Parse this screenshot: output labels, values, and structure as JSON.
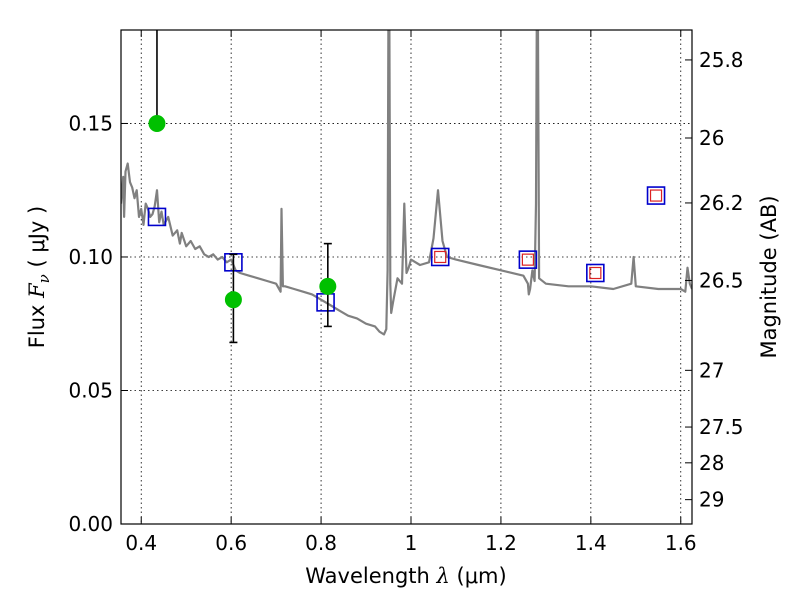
{
  "chart_data": {
    "type": "scatter",
    "title": "",
    "xlabel": "Wavelength  λ (μm)",
    "ylabel": "Flux  F_ν  ( μJy )",
    "ylabel_parts": {
      "prefix": "Flux  ",
      "symbol": "F",
      "sub": "ν",
      "suffix": "  ( μJy )"
    },
    "xlabel_parts": {
      "prefix": "Wavelength  ",
      "symbol": "λ",
      "suffix": " (μm)"
    },
    "y2label": "Magnitude (AB)",
    "xlim": [
      0.355,
      1.625
    ],
    "ylim": [
      0.0,
      0.185
    ],
    "grid": true,
    "x_ticks": [
      {
        "value": 0.4,
        "label": "0.4"
      },
      {
        "value": 0.6,
        "label": "0.6"
      },
      {
        "value": 0.8,
        "label": "0.8"
      },
      {
        "value": 1.0,
        "label": "1"
      },
      {
        "value": 1.2,
        "label": "1.2"
      },
      {
        "value": 1.4,
        "label": "1.4"
      },
      {
        "value": 1.6,
        "label": "1.6"
      }
    ],
    "y_ticks": [
      {
        "value": 0.0,
        "label": "0.00"
      },
      {
        "value": 0.05,
        "label": "0.05"
      },
      {
        "value": 0.1,
        "label": "0.10"
      },
      {
        "value": 0.15,
        "label": "0.15"
      }
    ],
    "y2_ticks": [
      {
        "mag": 25.8,
        "label": "25.8"
      },
      {
        "mag": 26.0,
        "label": "26"
      },
      {
        "mag": 26.2,
        "label": "26.2"
      },
      {
        "mag": 26.5,
        "label": "26.5"
      },
      {
        "mag": 27.0,
        "label": "27"
      },
      {
        "mag": 27.5,
        "label": "27.5"
      },
      {
        "mag": 28.0,
        "label": "28"
      },
      {
        "mag": 29.0,
        "label": "29"
      }
    ],
    "colors": {
      "model": "#808080",
      "observed": "#00c000",
      "model_band": "#0000cc",
      "inner_band": "#dd2222",
      "errorbar": "#000000"
    },
    "series": [
      {
        "style": "line",
        "x": [
          0.355,
          0.36,
          0.362,
          0.365,
          0.37,
          0.375,
          0.38,
          0.385,
          0.39,
          0.395,
          0.4,
          0.405,
          0.41,
          0.415,
          0.42,
          0.425,
          0.43,
          0.435,
          0.44,
          0.445,
          0.45,
          0.46,
          0.47,
          0.48,
          0.486,
          0.49,
          0.5,
          0.51,
          0.52,
          0.53,
          0.54,
          0.55,
          0.56,
          0.57,
          0.58,
          0.59,
          0.6,
          0.61,
          0.62,
          0.64,
          0.66,
          0.68,
          0.7,
          0.71,
          0.712,
          0.715,
          0.72,
          0.74,
          0.76,
          0.78,
          0.8,
          0.82,
          0.84,
          0.86,
          0.88,
          0.9,
          0.92,
          0.93,
          0.94,
          0.945,
          0.948,
          0.95,
          0.952,
          0.954,
          0.956,
          0.96,
          0.97,
          0.98,
          0.985,
          0.99,
          0.995,
          1.0,
          1.02,
          1.04,
          1.05,
          1.06,
          1.07,
          1.08,
          1.1,
          1.15,
          1.2,
          1.25,
          1.26,
          1.262,
          1.265,
          1.27,
          1.275,
          1.278,
          1.28,
          1.282,
          1.285,
          1.3,
          1.35,
          1.4,
          1.45,
          1.49,
          1.495,
          1.5,
          1.55,
          1.6,
          1.61,
          1.615,
          1.62,
          1.625
        ],
        "y": [
          0.12,
          0.13,
          0.115,
          0.132,
          0.135,
          0.128,
          0.126,
          0.122,
          0.125,
          0.115,
          0.118,
          0.112,
          0.12,
          0.118,
          0.115,
          0.116,
          0.119,
          0.125,
          0.113,
          0.117,
          0.112,
          0.115,
          0.108,
          0.11,
          0.105,
          0.109,
          0.104,
          0.106,
          0.103,
          0.104,
          0.101,
          0.1,
          0.101,
          0.099,
          0.1,
          0.098,
          0.099,
          0.095,
          0.094,
          0.093,
          0.092,
          0.091,
          0.09,
          0.087,
          0.118,
          0.089,
          0.089,
          0.088,
          0.087,
          0.086,
          0.084,
          0.082,
          0.08,
          0.078,
          0.077,
          0.075,
          0.074,
          0.072,
          0.071,
          0.073,
          0.095,
          0.2,
          0.185,
          0.09,
          0.079,
          0.083,
          0.092,
          0.09,
          0.12,
          0.094,
          0.096,
          0.099,
          0.097,
          0.098,
          0.107,
          0.125,
          0.106,
          0.1,
          0.099,
          0.097,
          0.095,
          0.093,
          0.09,
          0.086,
          0.088,
          0.095,
          0.091,
          0.12,
          0.2,
          0.2,
          0.092,
          0.09,
          0.089,
          0.089,
          0.088,
          0.09,
          0.1,
          0.089,
          0.088,
          0.088,
          0.087,
          0.096,
          0.09,
          0.088
        ]
      },
      {
        "name": "observed",
        "style": "markers",
        "x": [
          0.435,
          0.605,
          0.815
        ],
        "y": [
          0.15,
          0.084,
          0.089
        ],
        "yerr_low": [
          0.15,
          0.068,
          0.074
        ],
        "yerr_high": [
          0.185,
          0.101,
          0.105
        ]
      },
      {
        "name": "model_band_flux",
        "style": "squares",
        "x": [
          0.435,
          0.605,
          0.81,
          1.065,
          1.26,
          1.41,
          1.545
        ],
        "y": [
          0.115,
          0.098,
          0.083,
          0.1,
          0.099,
          0.094,
          0.123
        ]
      },
      {
        "name": "model_band_flux_inner",
        "style": "squares",
        "x": [
          1.065,
          1.26,
          1.41,
          1.545
        ],
        "y": [
          0.1,
          0.099,
          0.094,
          0.123
        ]
      }
    ]
  }
}
